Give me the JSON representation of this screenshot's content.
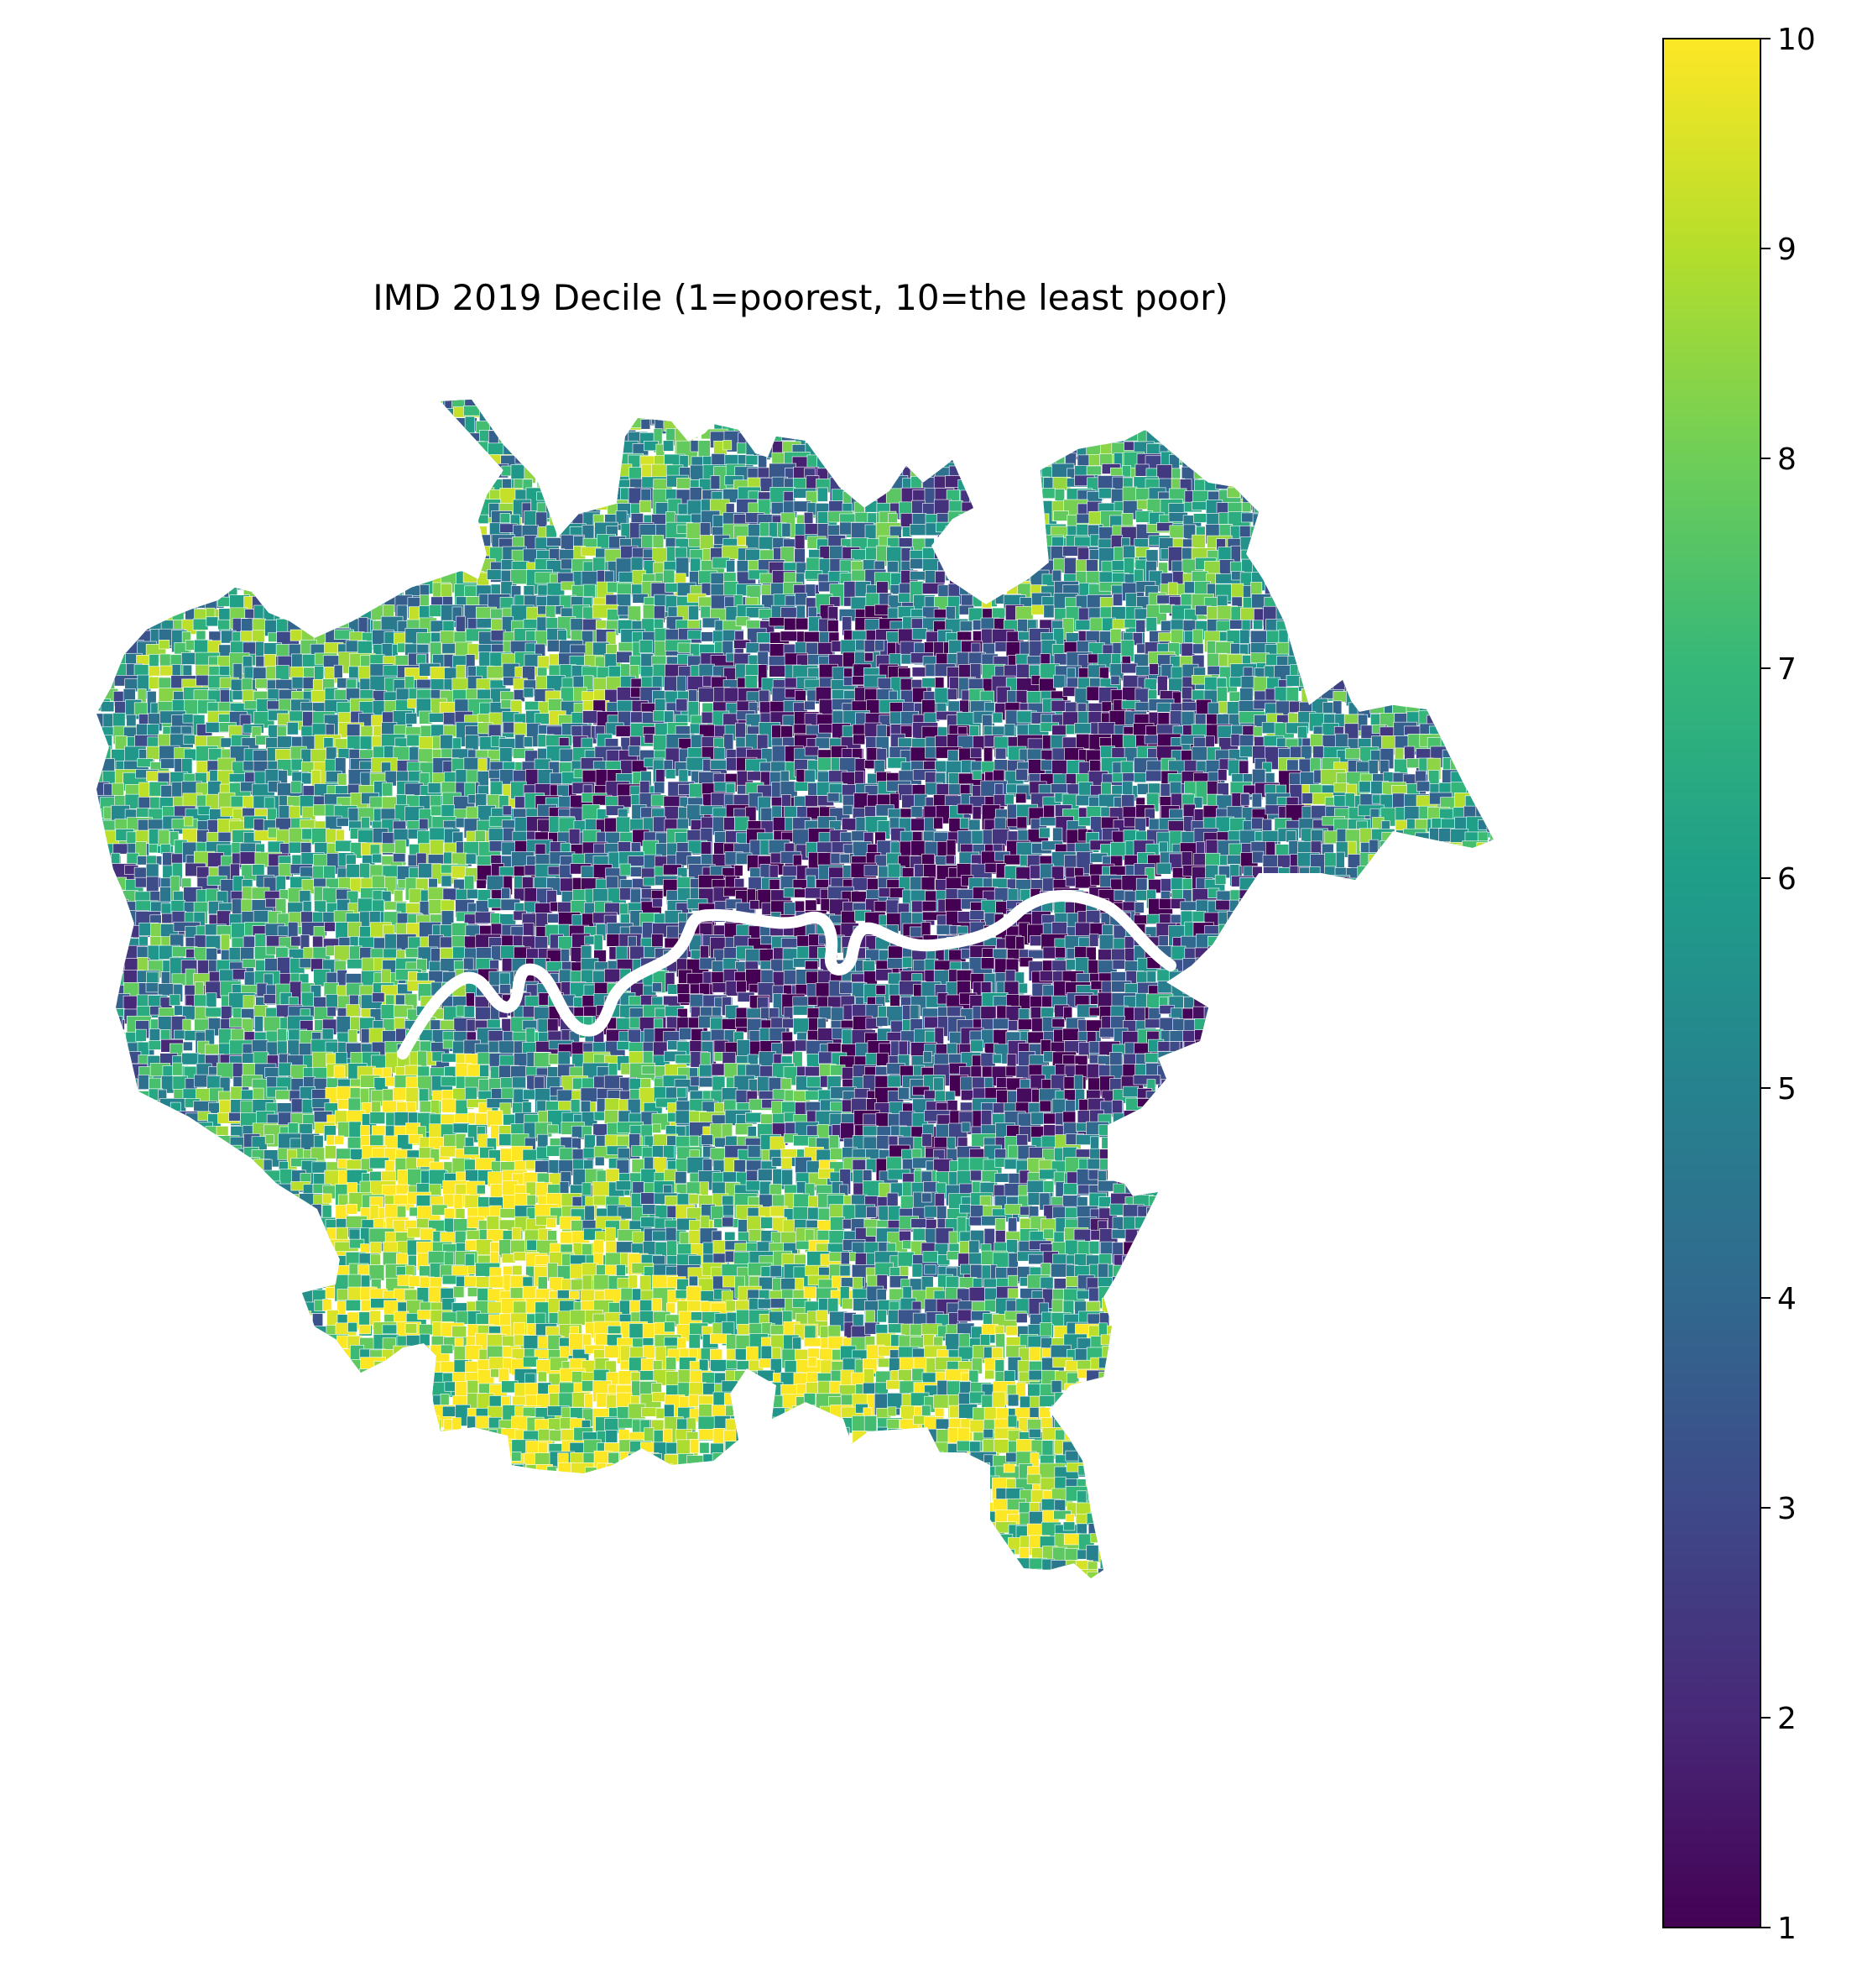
{
  "map": {
    "title": "IMD 2019 Decile (1=poorest, 10=the least poor)",
    "region": "Greater London",
    "variable": "IMD 2019 Decile",
    "value_range": [
      1,
      10
    ],
    "colormap": "viridis",
    "boundary_color": "#ffffff",
    "river_color": "#ffffff"
  },
  "colorbar": {
    "ticks": [
      "1",
      "2",
      "3",
      "4",
      "5",
      "6",
      "7",
      "8",
      "9",
      "10"
    ],
    "stops": [
      "#440154",
      "#482878",
      "#3e4989",
      "#31688e",
      "#26828e",
      "#1f9e89",
      "#35b779",
      "#6ece58",
      "#b5de2b",
      "#fde725"
    ]
  }
}
